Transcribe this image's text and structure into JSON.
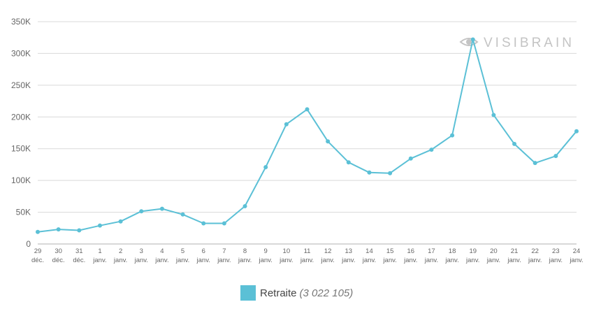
{
  "watermark": {
    "text": "VISIBRAIN",
    "icon": "eye-icon"
  },
  "chart_data": {
    "type": "line",
    "title": "",
    "xlabel": "",
    "ylabel": "",
    "ylim": [
      0,
      350000
    ],
    "yticks": [
      0,
      50000,
      100000,
      150000,
      200000,
      250000,
      300000,
      350000
    ],
    "ytick_labels": [
      "0",
      "50K",
      "100K",
      "150K",
      "200K",
      "250K",
      "300K",
      "350K"
    ],
    "grid": true,
    "legend_position": "bottom-center",
    "categories": [
      {
        "day": "29",
        "month": "déc."
      },
      {
        "day": "30",
        "month": "déc."
      },
      {
        "day": "31",
        "month": "déc."
      },
      {
        "day": "1",
        "month": "janv."
      },
      {
        "day": "2",
        "month": "janv."
      },
      {
        "day": "3",
        "month": "janv."
      },
      {
        "day": "4",
        "month": "janv."
      },
      {
        "day": "5",
        "month": "janv."
      },
      {
        "day": "6",
        "month": "janv."
      },
      {
        "day": "7",
        "month": "janv."
      },
      {
        "day": "8",
        "month": "janv."
      },
      {
        "day": "9",
        "month": "janv."
      },
      {
        "day": "10",
        "month": "janv."
      },
      {
        "day": "11",
        "month": "janv."
      },
      {
        "day": "12",
        "month": "janv."
      },
      {
        "day": "13",
        "month": "janv."
      },
      {
        "day": "14",
        "month": "janv."
      },
      {
        "day": "15",
        "month": "janv."
      },
      {
        "day": "16",
        "month": "janv."
      },
      {
        "day": "17",
        "month": "janv."
      },
      {
        "day": "18",
        "month": "janv."
      },
      {
        "day": "19",
        "month": "janv."
      },
      {
        "day": "20",
        "month": "janv."
      },
      {
        "day": "21",
        "month": "janv."
      },
      {
        "day": "22",
        "month": "janv."
      },
      {
        "day": "23",
        "month": "janv."
      },
      {
        "day": "24",
        "month": "janv."
      }
    ],
    "series": [
      {
        "name": "Retraite",
        "total_label": "(3 022 105)",
        "color": "#5bc0d6",
        "values": [
          19000,
          23000,
          21500,
          29000,
          35500,
          51500,
          55500,
          46500,
          32500,
          32500,
          59500,
          121000,
          188500,
          212000,
          161500,
          128500,
          112500,
          111500,
          134500,
          148500,
          171000,
          322000,
          203000,
          157500,
          127500,
          138500,
          177500
        ]
      }
    ]
  }
}
